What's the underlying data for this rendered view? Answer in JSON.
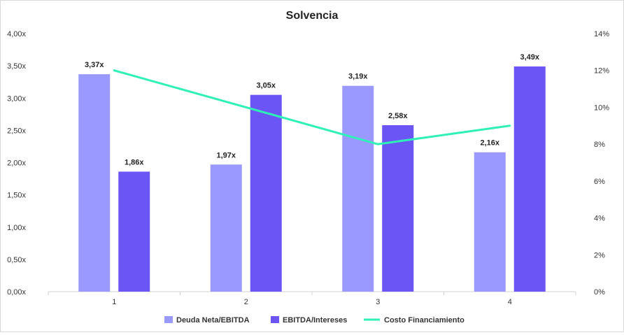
{
  "chart_data": {
    "type": "bar",
    "title": "Solvencia",
    "categories": [
      "1",
      "2",
      "3",
      "4"
    ],
    "y_left": {
      "min": 0,
      "max": 4,
      "step": 0.5,
      "tick_labels": [
        "0,00x",
        "0,50x",
        "1,00x",
        "1,50x",
        "2,00x",
        "2,50x",
        "3,00x",
        "3,50x",
        "4,00x"
      ]
    },
    "y_right": {
      "min": 0,
      "max": 14,
      "step": 2,
      "tick_labels": [
        "0%",
        "2%",
        "4%",
        "6%",
        "8%",
        "10%",
        "12%",
        "14%"
      ]
    },
    "series": [
      {
        "name": "Deuda Neta/EBITDA",
        "type": "bar",
        "axis": "left",
        "color": "#9999ff",
        "values": [
          3.37,
          1.97,
          3.19,
          2.16
        ],
        "labels": [
          "3,37x",
          "1,97x",
          "3,19x",
          "2,16x"
        ]
      },
      {
        "name": "EBITDA/Intereses",
        "type": "bar",
        "axis": "left",
        "color": "#6b55f5",
        "values": [
          1.86,
          3.05,
          2.58,
          3.49
        ],
        "labels": [
          "1,86x",
          "3,05x",
          "2,58x",
          "3,49x"
        ]
      },
      {
        "name": "Costo Financiamiento",
        "type": "line",
        "axis": "right",
        "color": "#2ff0b6",
        "values": [
          12.0,
          10.0,
          8.0,
          9.0
        ]
      }
    ],
    "legend": "bottom",
    "grid": false
  }
}
